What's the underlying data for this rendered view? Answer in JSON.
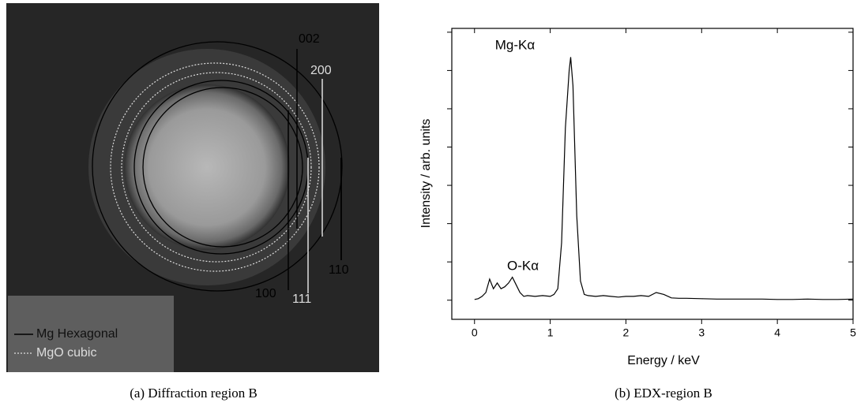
{
  "figure_a": {
    "labels": [
      "002",
      "200",
      "110",
      "100",
      "111"
    ],
    "legend": [
      "Mg Hexagonal",
      "MgO cubic"
    ],
    "caption": "(a) Diffraction region B"
  },
  "chart_data": {
    "type": "line",
    "caption": "(b) EDX-region B",
    "x_label": "Energy / keV",
    "y_label": "Intensity / arb. units",
    "annotations": [
      "Mg-Kα",
      "O-Kα"
    ],
    "xlim": [
      -0.3,
      5
    ],
    "xticks": [
      0,
      1,
      2,
      3,
      4,
      5
    ],
    "ylim": [
      -0.5,
      7.1
    ],
    "yticks": [
      0,
      1,
      2,
      3,
      4,
      5,
      6,
      7
    ],
    "series": [
      {
        "color": "#000000",
        "x": [
          0,
          0.05,
          0.1,
          0.15,
          0.2,
          0.25,
          0.3,
          0.35,
          0.4,
          0.45,
          0.5,
          0.55,
          0.6,
          0.65,
          0.7,
          0.8,
          0.9,
          1.0,
          1.05,
          1.1,
          1.15,
          1.2,
          1.25,
          1.27,
          1.3,
          1.35,
          1.4,
          1.45,
          1.5,
          1.6,
          1.7,
          1.8,
          1.9,
          2.0,
          2.1,
          2.2,
          2.3,
          2.4,
          2.5,
          2.6,
          2.7,
          2.8,
          3.0,
          3.2,
          3.4,
          3.6,
          3.8,
          4.0,
          4.2,
          4.4,
          4.6,
          4.8,
          5.0
        ],
        "values": [
          0.02,
          0.04,
          0.1,
          0.2,
          0.55,
          0.3,
          0.45,
          0.3,
          0.35,
          0.45,
          0.6,
          0.4,
          0.2,
          0.1,
          0.12,
          0.1,
          0.12,
          0.1,
          0.15,
          0.3,
          1.5,
          4.5,
          6.0,
          6.35,
          5.6,
          2.2,
          0.5,
          0.15,
          0.12,
          0.1,
          0.12,
          0.1,
          0.08,
          0.1,
          0.1,
          0.12,
          0.1,
          0.2,
          0.15,
          0.06,
          0.05,
          0.05,
          0.04,
          0.03,
          0.03,
          0.03,
          0.03,
          0.02,
          0.02,
          0.03,
          0.02,
          0.02,
          0.03
        ]
      }
    ]
  }
}
